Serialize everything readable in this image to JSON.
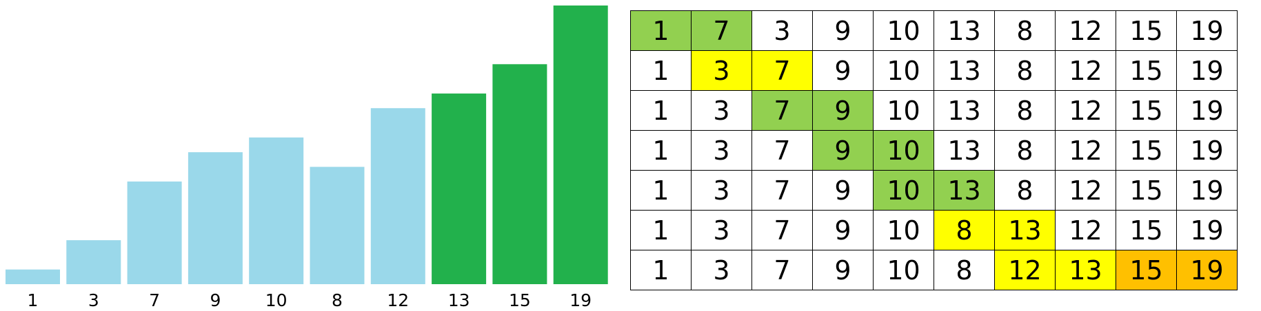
{
  "colors": {
    "bar_default": "#9ad8ea",
    "bar_highlight": "#22b14c",
    "cell_green": "#92d050",
    "cell_yellow": "#ffff00",
    "cell_orange": "#ffc000",
    "cell_white": "#ffffff"
  },
  "chart_data": {
    "type": "bar",
    "categories": [
      "1",
      "3",
      "7",
      "9",
      "10",
      "8",
      "12",
      "13",
      "15",
      "19"
    ],
    "values": [
      1,
      3,
      7,
      9,
      10,
      8,
      12,
      13,
      15,
      19
    ],
    "highlighted": [
      false,
      false,
      false,
      false,
      false,
      false,
      false,
      true,
      true,
      true
    ],
    "ylim": [
      0,
      19
    ]
  },
  "grid": {
    "rows": [
      {
        "cells": [
          {
            "value": "1",
            "color": "green"
          },
          {
            "value": "7",
            "color": "green"
          },
          {
            "value": "3",
            "color": "white"
          },
          {
            "value": "9",
            "color": "white"
          },
          {
            "value": "10",
            "color": "white"
          },
          {
            "value": "13",
            "color": "white"
          },
          {
            "value": "8",
            "color": "white"
          },
          {
            "value": "12",
            "color": "white"
          },
          {
            "value": "15",
            "color": "white"
          },
          {
            "value": "19",
            "color": "white"
          }
        ]
      },
      {
        "cells": [
          {
            "value": "1",
            "color": "white"
          },
          {
            "value": "3",
            "color": "yellow"
          },
          {
            "value": "7",
            "color": "yellow"
          },
          {
            "value": "9",
            "color": "white"
          },
          {
            "value": "10",
            "color": "white"
          },
          {
            "value": "13",
            "color": "white"
          },
          {
            "value": "8",
            "color": "white"
          },
          {
            "value": "12",
            "color": "white"
          },
          {
            "value": "15",
            "color": "white"
          },
          {
            "value": "19",
            "color": "white"
          }
        ]
      },
      {
        "cells": [
          {
            "value": "1",
            "color": "white"
          },
          {
            "value": "3",
            "color": "white"
          },
          {
            "value": "7",
            "color": "green"
          },
          {
            "value": "9",
            "color": "green"
          },
          {
            "value": "10",
            "color": "white"
          },
          {
            "value": "13",
            "color": "white"
          },
          {
            "value": "8",
            "color": "white"
          },
          {
            "value": "12",
            "color": "white"
          },
          {
            "value": "15",
            "color": "white"
          },
          {
            "value": "19",
            "color": "white"
          }
        ]
      },
      {
        "cells": [
          {
            "value": "1",
            "color": "white"
          },
          {
            "value": "3",
            "color": "white"
          },
          {
            "value": "7",
            "color": "white"
          },
          {
            "value": "9",
            "color": "green"
          },
          {
            "value": "10",
            "color": "green"
          },
          {
            "value": "13",
            "color": "white"
          },
          {
            "value": "8",
            "color": "white"
          },
          {
            "value": "12",
            "color": "white"
          },
          {
            "value": "15",
            "color": "white"
          },
          {
            "value": "19",
            "color": "white"
          }
        ]
      },
      {
        "cells": [
          {
            "value": "1",
            "color": "white"
          },
          {
            "value": "3",
            "color": "white"
          },
          {
            "value": "7",
            "color": "white"
          },
          {
            "value": "9",
            "color": "white"
          },
          {
            "value": "10",
            "color": "green"
          },
          {
            "value": "13",
            "color": "green"
          },
          {
            "value": "8",
            "color": "white"
          },
          {
            "value": "12",
            "color": "white"
          },
          {
            "value": "15",
            "color": "white"
          },
          {
            "value": "19",
            "color": "white"
          }
        ]
      },
      {
        "cells": [
          {
            "value": "1",
            "color": "white"
          },
          {
            "value": "3",
            "color": "white"
          },
          {
            "value": "7",
            "color": "white"
          },
          {
            "value": "9",
            "color": "white"
          },
          {
            "value": "10",
            "color": "white"
          },
          {
            "value": "8",
            "color": "yellow"
          },
          {
            "value": "13",
            "color": "yellow"
          },
          {
            "value": "12",
            "color": "white"
          },
          {
            "value": "15",
            "color": "white"
          },
          {
            "value": "19",
            "color": "white"
          }
        ]
      },
      {
        "cells": [
          {
            "value": "1",
            "color": "white"
          },
          {
            "value": "3",
            "color": "white"
          },
          {
            "value": "7",
            "color": "white"
          },
          {
            "value": "9",
            "color": "white"
          },
          {
            "value": "10",
            "color": "white"
          },
          {
            "value": "8",
            "color": "white"
          },
          {
            "value": "12",
            "color": "yellow"
          },
          {
            "value": "13",
            "color": "yellow"
          },
          {
            "value": "15",
            "color": "orange"
          },
          {
            "value": "19",
            "color": "orange"
          }
        ]
      }
    ]
  }
}
